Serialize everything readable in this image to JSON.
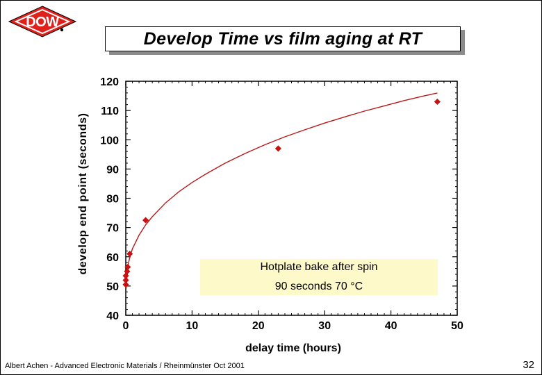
{
  "logo": {
    "text": "DOW",
    "icon": "dow-diamond-logo-icon",
    "color": "#e0201b"
  },
  "title": "Develop Time vs film aging at RT",
  "footer": "Albert Achen - Advanced Electronic Materials / Rheinmünster Oct 2001",
  "page_number": "32",
  "chart_data": {
    "type": "scatter",
    "title": "Develop Time vs film aging at RT",
    "xlabel": "delay time (hours)",
    "ylabel": "develop end point (seconds)",
    "xlim": [
      0,
      50
    ],
    "ylim": [
      40,
      120
    ],
    "x_ticks": [
      0,
      10,
      20,
      30,
      40,
      50
    ],
    "y_ticks": [
      40,
      50,
      60,
      70,
      80,
      90,
      100,
      110,
      120
    ],
    "grid": false,
    "marker_color": "#cc1111",
    "line_color": "#b81818",
    "series": [
      {
        "x": [
          0,
          0,
          0,
          0.2,
          0.3,
          0.6,
          3,
          23,
          47
        ],
        "y": [
          50.5,
          52,
          53.5,
          55,
          56.5,
          61,
          72.5,
          97,
          113
        ]
      }
    ],
    "fit_curve": {
      "x": [
        0.05,
        0.3,
        0.6,
        1,
        2,
        3,
        4,
        6,
        8,
        10,
        12,
        15,
        18,
        21,
        24,
        27,
        30,
        33,
        36,
        39,
        42,
        45,
        47
      ],
      "y": [
        49,
        56.7,
        59.8,
        62.7,
        67.4,
        70.9,
        73.7,
        78.4,
        82.2,
        85.4,
        88.2,
        92,
        95.3,
        98.3,
        101,
        103.4,
        105.7,
        107.8,
        109.8,
        111.6,
        113.4,
        115,
        116
      ]
    },
    "annotation": {
      "lines": [
        "Hotplate bake after spin",
        "90 seconds 70 °C"
      ],
      "background": "#fdf9c8"
    }
  }
}
